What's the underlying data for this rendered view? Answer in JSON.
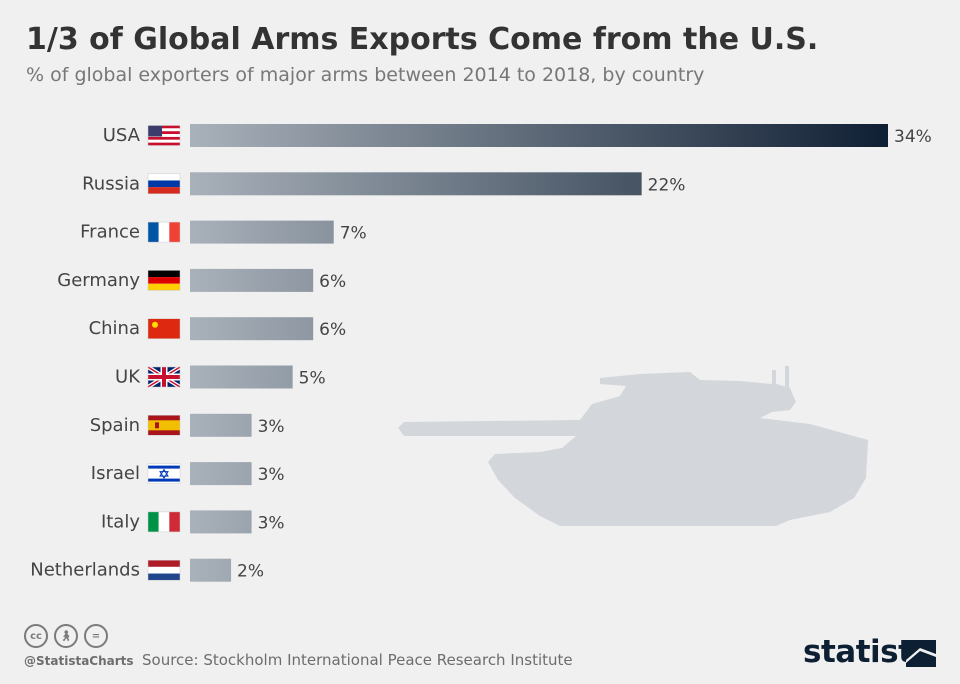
{
  "header": {
    "title": "1/3 of Global Arms Exports Come from the U.S.",
    "subtitle": "% of global exporters of major arms between 2014 to 2018, by country"
  },
  "chart_data": {
    "type": "bar",
    "orientation": "horizontal",
    "title": "1/3 of Global Arms Exports Come from the U.S.",
    "subtitle": "% of global exporters of major arms between 2014 to 2018, by country",
    "categories": [
      "USA",
      "Russia",
      "France",
      "Germany",
      "China",
      "UK",
      "Spain",
      "Israel",
      "Italy",
      "Netherlands"
    ],
    "values": [
      34,
      22,
      7,
      6,
      6,
      5,
      3,
      3,
      3,
      2
    ],
    "value_labels": [
      "34%",
      "22%",
      "7%",
      "6%",
      "6%",
      "5%",
      "3%",
      "3%",
      "3%",
      "2%"
    ],
    "unit": "%",
    "xlim": [
      0,
      34
    ],
    "grid": false,
    "legend": "none",
    "colors": {
      "bar_light": "#a9b1ba",
      "bar_dark": "#0f1f33",
      "label": "#444444"
    }
  },
  "footer": {
    "handle": "@StatistaCharts",
    "source": "Source: Stockholm International Peace Research Institute",
    "brand": "statista",
    "license_icons": [
      "cc-icon",
      "attribution-icon",
      "no-derivatives-icon"
    ]
  }
}
